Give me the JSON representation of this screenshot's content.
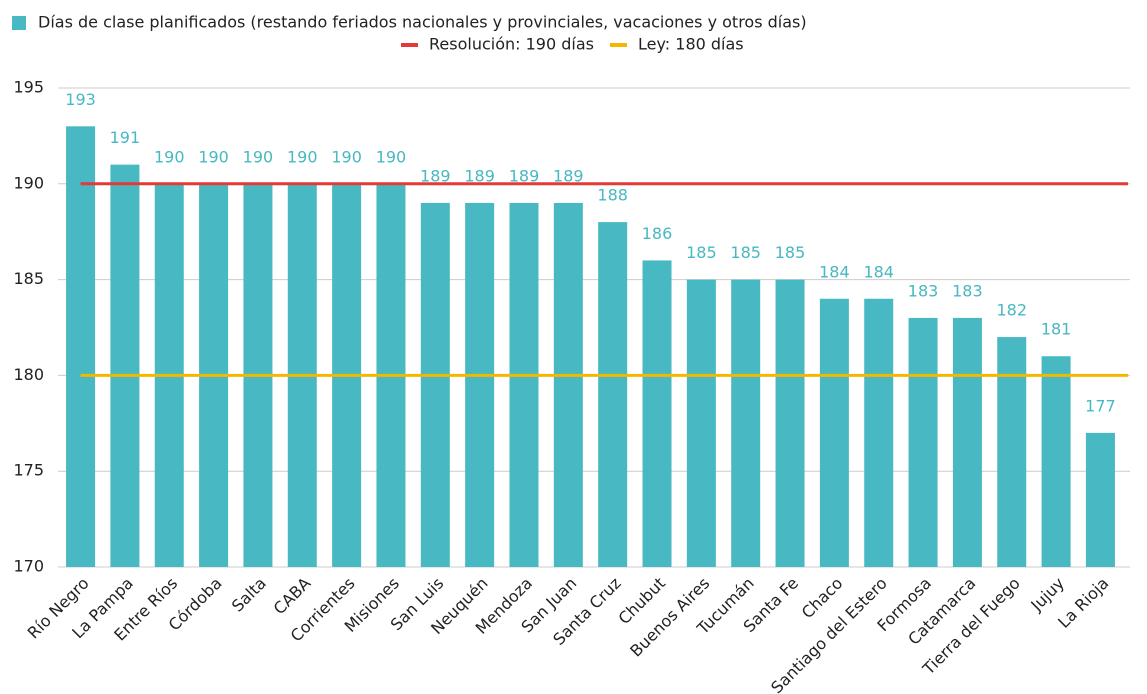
{
  "chart_data": {
    "type": "bar",
    "categories": [
      "Río Negro",
      "La Pampa",
      "Entre Ríos",
      "Córdoba",
      "Salta",
      "CABA",
      "Corrientes",
      "Misiones",
      "San Luis",
      "Neuquén",
      "Mendoza",
      "San Juan",
      "Santa Cruz",
      "Chubut",
      "Buenos Aires",
      "Tucumán",
      "Santa Fe",
      "Chaco",
      "Santiago del Estero",
      "Formosa",
      "Catamarca",
      "Tierra del Fuego",
      "Jujuy",
      "La Rioja"
    ],
    "series": [
      {
        "name": "Días de clase planificados (restando feriados nacionales y provinciales, vacaciones y otros días)",
        "color": "#48b8c2",
        "values": [
          193,
          191,
          190,
          190,
          190,
          190,
          190,
          190,
          189,
          189,
          189,
          189,
          188,
          186,
          185,
          185,
          185,
          184,
          184,
          183,
          183,
          182,
          181,
          177
        ]
      }
    ],
    "reference_lines": [
      {
        "name": "Resolución: 190 días",
        "value": 190,
        "color": "#e53935"
      },
      {
        "name": "Ley: 180 días",
        "value": 180,
        "color": "#f5b800"
      }
    ],
    "ylim": [
      170,
      195
    ],
    "yticks": [
      170,
      175,
      180,
      185,
      190,
      195
    ],
    "grid": true
  }
}
